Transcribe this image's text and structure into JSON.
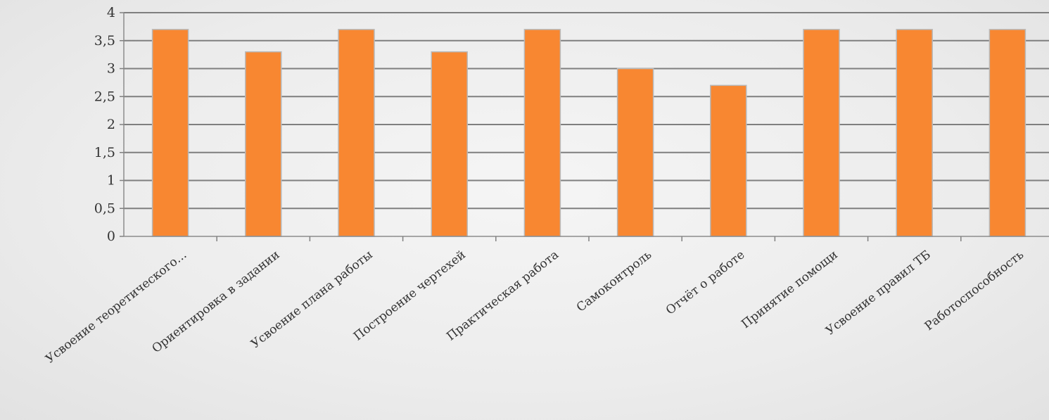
{
  "chart_data": {
    "type": "bar",
    "categories": [
      "Усвоение теоретического...",
      "Ориентировка в задании",
      "Усвоение плана работы",
      "Построение чертехей",
      "Практическая работа",
      "Самоконтроль",
      "Отчёт о работе",
      "Принятие помощи",
      "Усвоение правил ТБ",
      "Работоспособность"
    ],
    "values": [
      3.7,
      3.3,
      3.7,
      3.3,
      3.7,
      3.0,
      2.7,
      3.7,
      3.7,
      3.7
    ],
    "ylim": [
      0,
      4
    ],
    "yticks": [
      0,
      0.5,
      1,
      1.5,
      2,
      2.5,
      3,
      3.5,
      4
    ],
    "ytick_labels": [
      "0",
      "0,5",
      "1",
      "1,5",
      "2",
      "2,5",
      "3",
      "3,5",
      "4"
    ],
    "grid": true,
    "bar_color": "#f88731",
    "bar_edge_color": "#b9b9b9",
    "gridline_color": "#7f7f7f"
  }
}
